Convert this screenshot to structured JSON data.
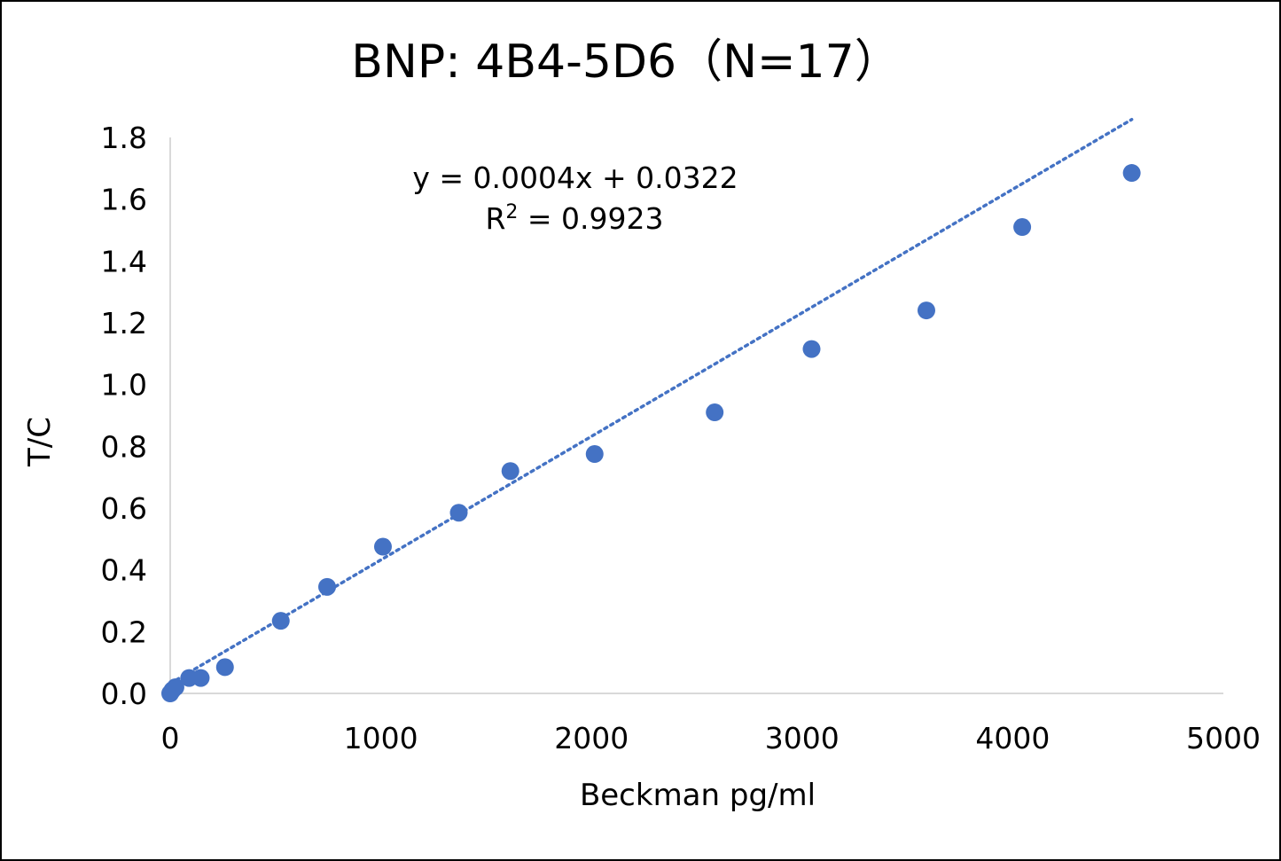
{
  "chart_data": {
    "type": "scatter",
    "title": "BNP: 4B4-5D6（N=17）",
    "xlabel": "Beckman pg/ml",
    "ylabel": "T/C",
    "xlim": [
      0,
      5000
    ],
    "ylim": [
      0,
      1.8
    ],
    "x_ticks": [
      "0",
      "1000",
      "2000",
      "3000",
      "4000",
      "5000"
    ],
    "y_ticks": [
      "0.0",
      "0.2",
      "0.4",
      "0.6",
      "0.8",
      "1.0",
      "1.2",
      "1.4",
      "1.6",
      "1.8"
    ],
    "grid": false,
    "legend": "none",
    "series": [
      {
        "color": "#4472C4",
        "x": [
          0,
          10,
          25,
          90,
          145,
          260,
          525,
          745,
          1010,
          1370,
          1615,
          2015,
          2585,
          3045,
          3590,
          4045,
          4565
        ],
        "y": [
          0.0,
          0.01,
          0.02,
          0.05,
          0.05,
          0.085,
          0.235,
          0.345,
          0.475,
          0.585,
          0.72,
          0.775,
          0.91,
          1.115,
          1.24,
          1.51,
          1.685
        ]
      }
    ],
    "trendline": {
      "type": "linear",
      "slope": 0.0004,
      "intercept": 0.0322,
      "style": "dotted",
      "color": "#4472C4",
      "equation_label": "y = 0.0004x + 0.0322",
      "r2_prefix": "R",
      "r2_sup": "2",
      "r2_rest": " = 0.9923"
    }
  }
}
